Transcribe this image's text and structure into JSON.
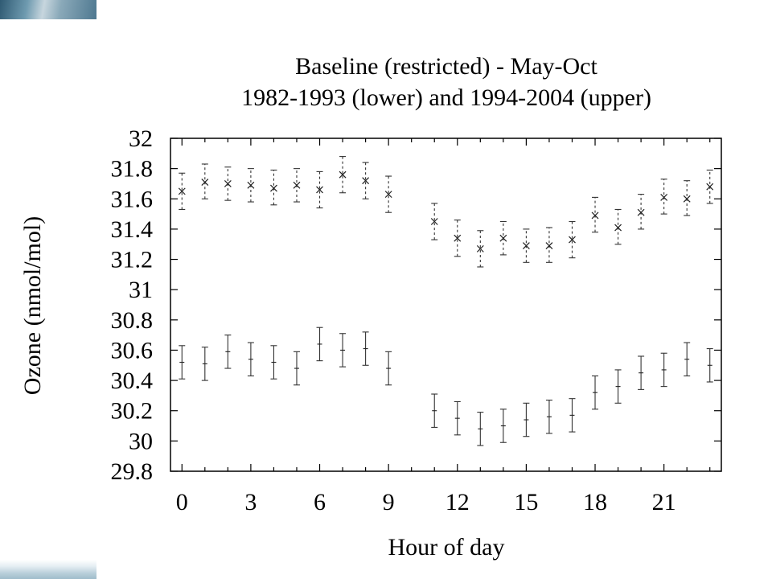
{
  "chart_data": {
    "type": "scatter",
    "title": [
      "Baseline (restricted) - May-Oct",
      "1982-1993 (lower) and 1994-2004 (upper)"
    ],
    "xlabel": "Hour of day",
    "ylabel": "Ozone (nmol/mol)",
    "xlim": [
      -0.5,
      23.5
    ],
    "ylim": [
      29.8,
      32
    ],
    "xticks": [
      0,
      3,
      6,
      9,
      12,
      15,
      18,
      21
    ],
    "yticks": [
      29.8,
      30,
      30.2,
      30.4,
      30.6,
      30.8,
      31,
      31.2,
      31.4,
      31.6,
      31.8,
      32
    ],
    "ytick_labels": [
      "29.8",
      "30",
      "30.2",
      "30.4",
      "30.6",
      "30.8",
      "31",
      "31.2",
      "31.4",
      "31.6",
      "31.8",
      "32"
    ],
    "grid": false,
    "legend": "none",
    "series": [
      {
        "marker": "x",
        "line": "dashed",
        "x": [
          0,
          1,
          2,
          3,
          4,
          5,
          6,
          7,
          8,
          9,
          11,
          12,
          13,
          14,
          15,
          16,
          17,
          18,
          19,
          20,
          21,
          22,
          23
        ],
        "y": [
          31.65,
          31.71,
          31.7,
          31.69,
          31.67,
          31.69,
          31.66,
          31.76,
          31.72,
          31.63,
          31.45,
          31.34,
          31.27,
          31.34,
          31.29,
          31.29,
          31.33,
          31.49,
          31.41,
          31.51,
          31.61,
          31.6,
          31.68
        ],
        "err_low": [
          31.53,
          31.6,
          31.59,
          31.58,
          31.56,
          31.58,
          31.54,
          31.64,
          31.6,
          31.51,
          31.33,
          31.22,
          31.15,
          31.23,
          31.18,
          31.18,
          31.21,
          31.38,
          31.3,
          31.4,
          31.5,
          31.49,
          31.57
        ],
        "err_high": [
          31.77,
          31.83,
          31.81,
          31.8,
          31.79,
          31.8,
          31.78,
          31.88,
          31.84,
          31.75,
          31.57,
          31.46,
          31.39,
          31.45,
          31.4,
          31.41,
          31.45,
          31.61,
          31.53,
          31.63,
          31.73,
          31.72,
          31.79
        ]
      },
      {
        "marker": "none",
        "line": "solid",
        "x": [
          0,
          1,
          2,
          3,
          4,
          5,
          6,
          7,
          8,
          9,
          11,
          12,
          13,
          14,
          15,
          16,
          17,
          18,
          19,
          20,
          21,
          22,
          23
        ],
        "y": [
          30.52,
          30.51,
          30.59,
          30.54,
          30.52,
          30.48,
          30.64,
          30.6,
          30.61,
          30.48,
          30.2,
          30.15,
          30.08,
          30.1,
          30.14,
          30.16,
          30.17,
          30.32,
          30.36,
          30.45,
          30.47,
          30.54,
          30.5
        ],
        "err_low": [
          30.41,
          30.4,
          30.48,
          30.43,
          30.41,
          30.37,
          30.53,
          30.49,
          30.5,
          30.37,
          30.09,
          30.04,
          29.97,
          29.99,
          30.03,
          30.05,
          30.06,
          30.21,
          30.25,
          30.34,
          30.36,
          30.43,
          30.39
        ],
        "err_high": [
          30.63,
          30.62,
          30.7,
          30.65,
          30.63,
          30.59,
          30.75,
          30.71,
          30.72,
          30.59,
          30.31,
          30.26,
          30.19,
          30.21,
          30.25,
          30.27,
          30.28,
          30.43,
          30.47,
          30.56,
          30.58,
          30.65,
          30.61
        ]
      }
    ]
  },
  "decoration": {
    "top_corner_icon": "sky-image-strip",
    "bottom_corner_icon": "sky-image-strip"
  }
}
